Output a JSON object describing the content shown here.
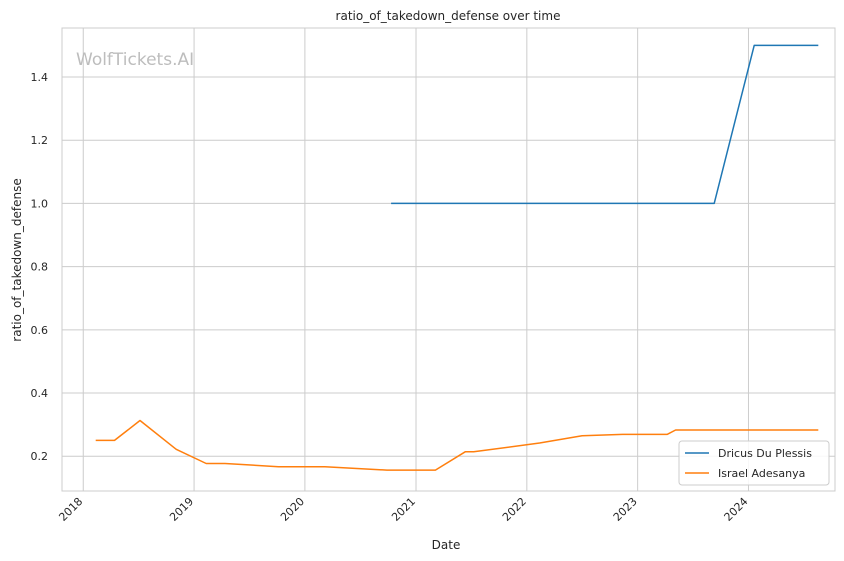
{
  "chart_data": {
    "type": "line",
    "title": "ratio_of_takedown_defense over time",
    "xlabel": "Date",
    "ylabel": "ratio_of_takedown_defense",
    "watermark": "WolfTickets.AI",
    "x_ticks": [
      "2018",
      "2019",
      "2020",
      "2021",
      "2022",
      "2023",
      "2024"
    ],
    "y_ticks": [
      "0.2",
      "0.4",
      "0.6",
      "0.8",
      "1.0",
      "1.2",
      "1.4"
    ],
    "xlim": [
      "2017-10-23",
      "2024-10-12"
    ],
    "ylim": [
      0.09,
      1.555
    ],
    "grid": true,
    "legend_position": "lower right",
    "series": [
      {
        "name": "Dricus Du Plessis",
        "color": "#1f77b4",
        "points": [
          [
            "2020-10-11",
            1.0
          ],
          [
            "2023-09-10",
            1.0
          ],
          [
            "2024-01-20",
            1.5
          ],
          [
            "2024-08-18",
            1.5
          ]
        ]
      },
      {
        "name": "Israel Adesanya",
        "color": "#ff7f0e",
        "points": [
          [
            "2018-02-11",
            0.25
          ],
          [
            "2018-04-14",
            0.25
          ],
          [
            "2018-07-07",
            0.313
          ],
          [
            "2018-11-03",
            0.222
          ],
          [
            "2019-02-10",
            0.177
          ],
          [
            "2019-04-13",
            0.177
          ],
          [
            "2019-10-06",
            0.167
          ],
          [
            "2020-03-07",
            0.167
          ],
          [
            "2020-09-27",
            0.156
          ],
          [
            "2021-03-06",
            0.156
          ],
          [
            "2021-06-12",
            0.214
          ],
          [
            "2021-07-10",
            0.214
          ],
          [
            "2022-02-12",
            0.242
          ],
          [
            "2022-07-02",
            0.265
          ],
          [
            "2022-11-12",
            0.269
          ],
          [
            "2023-04-08",
            0.269
          ],
          [
            "2023-05-06",
            0.283
          ],
          [
            "2024-08-18",
            0.283
          ]
        ]
      }
    ]
  }
}
